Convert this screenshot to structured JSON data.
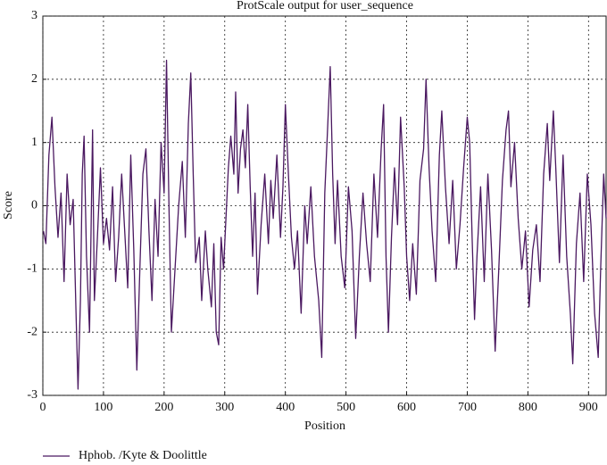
{
  "chart_data": {
    "type": "line",
    "title": "ProtScale output for user_sequence",
    "x_label": "Position",
    "y_label": "Score",
    "x": [
      1,
      5,
      10,
      15,
      20,
      25,
      30,
      35,
      40,
      45,
      50,
      55,
      58,
      62,
      65,
      68,
      72,
      77,
      82,
      85,
      90,
      95,
      100,
      105,
      110,
      115,
      120,
      125,
      130,
      135,
      140,
      145,
      150,
      155,
      160,
      165,
      170,
      175,
      180,
      185,
      190,
      195,
      200,
      204,
      208,
      212,
      218,
      224,
      230,
      235,
      240,
      244,
      248,
      252,
      258,
      262,
      268,
      272,
      278,
      282,
      286,
      290,
      294,
      298,
      302,
      306,
      310,
      315,
      318,
      322,
      326,
      330,
      334,
      338,
      342,
      346,
      350,
      354,
      360,
      366,
      372,
      376,
      380,
      386,
      392,
      396,
      400,
      405,
      410,
      415,
      420,
      426,
      432,
      436,
      442,
      448,
      455,
      460,
      465,
      470,
      474,
      478,
      482,
      486,
      492,
      498,
      504,
      510,
      516,
      522,
      528,
      534,
      540,
      546,
      552,
      558,
      562,
      566,
      570,
      575,
      580,
      585,
      590,
      596,
      600,
      605,
      610,
      616,
      622,
      628,
      632,
      637,
      642,
      648,
      654,
      658,
      664,
      670,
      676,
      682,
      688,
      694,
      700,
      704,
      708,
      712,
      716,
      722,
      728,
      734,
      740,
      746,
      752,
      758,
      764,
      768,
      772,
      778,
      784,
      790,
      796,
      802,
      808,
      814,
      820,
      826,
      832,
      836,
      842,
      846,
      852,
      858,
      864,
      870,
      874,
      880,
      886,
      892,
      898,
      904,
      910,
      916,
      920,
      925,
      929
    ],
    "series": [
      {
        "name": "Hphob. /Kyte & Doolittle",
        "color": "#4a1860",
        "values": [
          -0.4,
          -0.6,
          0.8,
          1.4,
          0.3,
          -0.5,
          0.2,
          -1.2,
          0.5,
          -0.3,
          0.1,
          -1.8,
          -2.9,
          -1.5,
          0.5,
          1.1,
          -0.8,
          -2.0,
          1.2,
          -1.5,
          -0.5,
          0.6,
          -0.6,
          -0.2,
          -0.7,
          0.3,
          -1.2,
          -0.5,
          0.5,
          -0.4,
          -1.3,
          0.8,
          -0.7,
          -2.6,
          -1.0,
          0.5,
          0.9,
          -0.4,
          -1.5,
          0.1,
          -0.8,
          1.0,
          0.2,
          2.3,
          0.0,
          -2.0,
          -1.0,
          0.0,
          0.7,
          -0.5,
          1.3,
          2.1,
          0.5,
          -0.9,
          -0.5,
          -1.5,
          -0.4,
          -1.0,
          -1.6,
          -0.6,
          -2.0,
          -2.2,
          -0.5,
          -1.0,
          -0.2,
          0.6,
          1.1,
          0.5,
          1.8,
          0.2,
          0.9,
          1.2,
          0.6,
          1.6,
          0.3,
          -0.8,
          0.2,
          -1.4,
          -0.3,
          0.5,
          -0.6,
          0.4,
          -0.2,
          0.8,
          -0.5,
          0.3,
          1.6,
          0.5,
          -0.5,
          -1.0,
          -0.4,
          -1.7,
          0.0,
          -0.6,
          0.3,
          -0.8,
          -1.5,
          -2.4,
          0.2,
          1.3,
          2.2,
          0.5,
          -0.6,
          0.4,
          -0.8,
          -1.3,
          0.3,
          -0.4,
          -2.1,
          -0.8,
          0.2,
          -0.6,
          -1.2,
          0.5,
          -0.5,
          0.9,
          1.6,
          -0.8,
          -2.0,
          -0.5,
          0.6,
          -0.3,
          1.4,
          0.3,
          -0.8,
          -1.5,
          -0.6,
          -1.4,
          0.4,
          0.9,
          2.0,
          0.6,
          -0.4,
          -1.2,
          0.8,
          1.5,
          0.3,
          -0.6,
          0.4,
          -1.0,
          -0.3,
          0.6,
          1.4,
          1.0,
          -0.5,
          -1.8,
          -0.8,
          0.3,
          -1.2,
          0.5,
          -0.7,
          -2.3,
          -1.0,
          0.4,
          1.2,
          1.5,
          0.3,
          1.0,
          -0.2,
          -1.0,
          -0.4,
          -1.6,
          -0.7,
          -0.3,
          -1.2,
          0.5,
          1.3,
          0.4,
          1.5,
          0.6,
          -0.9,
          0.8,
          -0.8,
          -1.7,
          -2.5,
          -0.6,
          0.2,
          -1.2,
          0.5,
          -0.3,
          -1.7,
          -2.4,
          -1.0,
          0.5,
          -0.2
        ]
      }
    ],
    "xlim": [
      0,
      929
    ],
    "ylim": [
      -3,
      3
    ],
    "xticks": [
      0,
      100,
      200,
      300,
      400,
      500,
      600,
      700,
      800,
      900
    ],
    "yticks": [
      -3,
      -2,
      -1,
      0,
      1,
      2,
      3
    ],
    "grid": true
  }
}
